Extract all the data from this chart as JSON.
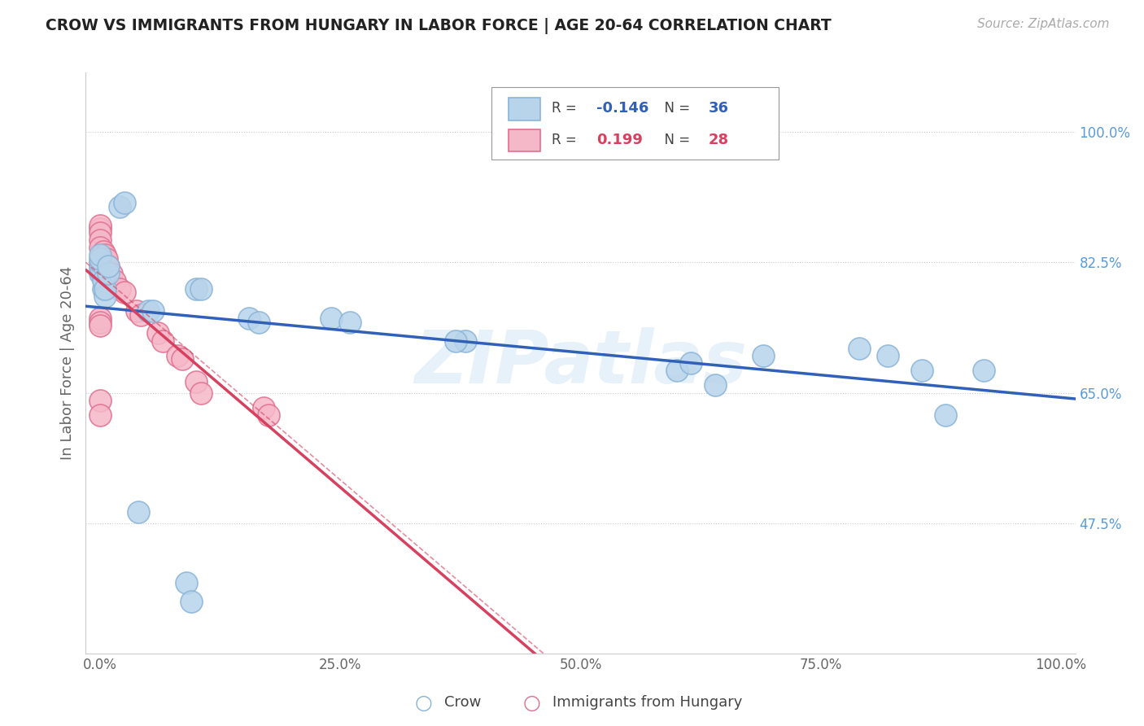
{
  "title": "CROW VS IMMIGRANTS FROM HUNGARY IN LABOR FORCE | AGE 20-64 CORRELATION CHART",
  "source": "Source: ZipAtlas.com",
  "ylabel": "In Labor Force | Age 20-64",
  "crow_color": "#b8d4ea",
  "crow_edge": "#8ab4d8",
  "hungary_color": "#f5b8c8",
  "hungary_edge": "#e07090",
  "trend_crow_color": "#3060b8",
  "trend_hungary_color": "#d84060",
  "watermark": "ZIPatlas",
  "crow_R": "-0.146",
  "crow_N": "36",
  "hungary_R": "0.199",
  "hungary_N": "28",
  "crow_points_x": [
    0.02,
    0.025,
    0.0,
    0.0,
    0.0,
    0.0,
    0.0,
    0.0,
    0.003,
    0.003,
    0.005,
    0.005,
    0.008,
    0.008,
    0.05,
    0.055,
    0.1,
    0.105,
    0.155,
    0.165,
    0.24,
    0.26,
    0.38,
    0.04,
    0.09,
    0.095,
    0.6,
    0.615,
    0.64,
    0.69,
    0.79,
    0.82,
    0.855,
    0.88,
    0.92,
    0.37
  ],
  "crow_points_y": [
    0.9,
    0.905,
    0.81,
    0.815,
    0.82,
    0.825,
    0.83,
    0.835,
    0.79,
    0.8,
    0.78,
    0.79,
    0.81,
    0.82,
    0.76,
    0.76,
    0.79,
    0.79,
    0.75,
    0.745,
    0.75,
    0.745,
    0.72,
    0.49,
    0.395,
    0.37,
    0.68,
    0.69,
    0.66,
    0.7,
    0.71,
    0.7,
    0.68,
    0.62,
    0.68,
    0.72
  ],
  "hungary_points_x": [
    0.0,
    0.0,
    0.0,
    0.0,
    0.0,
    0.003,
    0.005,
    0.007,
    0.008,
    0.0,
    0.0,
    0.0,
    0.0,
    0.0,
    0.012,
    0.015,
    0.02,
    0.025,
    0.038,
    0.042,
    0.06,
    0.065,
    0.08,
    0.085,
    0.1,
    0.105,
    0.17,
    0.175
  ],
  "hungary_points_y": [
    0.87,
    0.875,
    0.865,
    0.855,
    0.845,
    0.84,
    0.835,
    0.83,
    0.82,
    0.75,
    0.745,
    0.74,
    0.64,
    0.62,
    0.81,
    0.8,
    0.79,
    0.785,
    0.76,
    0.755,
    0.73,
    0.72,
    0.7,
    0.695,
    0.665,
    0.65,
    0.63,
    0.62
  ],
  "xlim": [
    -0.015,
    1.015
  ],
  "ylim": [
    0.3,
    1.08
  ],
  "yticks": [
    0.475,
    0.65,
    0.825,
    1.0
  ],
  "ytick_labels": [
    "47.5%",
    "65.0%",
    "82.5%",
    "100.0%"
  ],
  "xticks": [
    0.0,
    0.25,
    0.5,
    0.75,
    1.0
  ],
  "xtick_labels": [
    "0.0%",
    "25.0%",
    "50.0%",
    "75.0%",
    "100.0%"
  ]
}
